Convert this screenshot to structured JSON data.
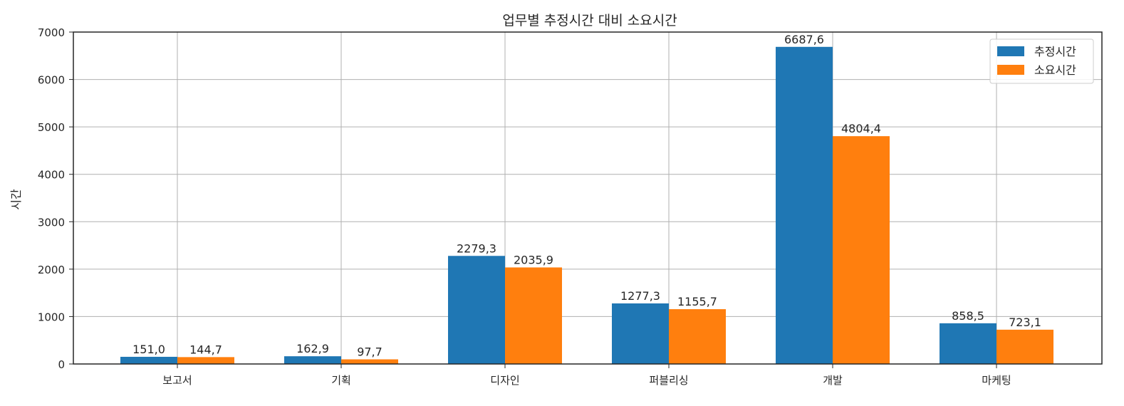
{
  "chart_data": {
    "type": "bar",
    "title": "업무별 추정시간 대비 소요시간",
    "xlabel": "",
    "ylabel": "시간",
    "categories": [
      "보고서",
      "기획",
      "디자인",
      "퍼블리싱",
      "개발",
      "마케팅"
    ],
    "series": [
      {
        "name": "추정시간",
        "color": "#1f77b4",
        "values": [
          151.0,
          162.9,
          2279.3,
          1277.3,
          6687.6,
          858.5
        ]
      },
      {
        "name": "소요시간",
        "color": "#ff7f0e",
        "values": [
          144.7,
          97.7,
          2035.9,
          1155.7,
          4804.4,
          723.1
        ]
      }
    ],
    "ylim": [
      0,
      7000
    ],
    "yticks": [
      0,
      1000,
      2000,
      3000,
      4000,
      5000,
      6000,
      7000
    ],
    "grid": true,
    "legend_position": "top-right",
    "data_label_format": "0.0 with comma decimal"
  }
}
